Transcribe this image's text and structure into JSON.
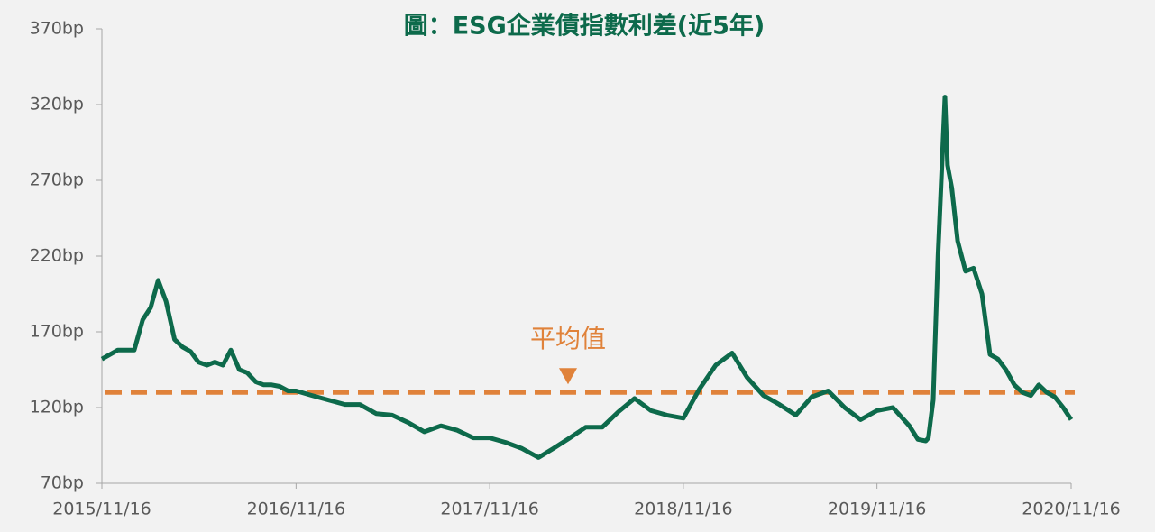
{
  "chart_data": {
    "type": "line",
    "title": "圖：ESG企業債指數利差(近5年)",
    "x": [
      "2015/11/16",
      "2015/12/16",
      "2016/01/16",
      "2016/02/01",
      "2016/02/16",
      "2016/03/01",
      "2016/03/16",
      "2016/04/01",
      "2016/04/16",
      "2016/05/01",
      "2016/05/16",
      "2016/06/01",
      "2016/06/16",
      "2016/07/01",
      "2016/07/16",
      "2016/08/01",
      "2016/08/16",
      "2016/09/01",
      "2016/09/16",
      "2016/10/01",
      "2016/10/16",
      "2016/11/01",
      "2016/11/16",
      "2016/12/16",
      "2017/01/16",
      "2017/02/16",
      "2017/03/16",
      "2017/04/16",
      "2017/05/16",
      "2017/06/16",
      "2017/07/16",
      "2017/08/16",
      "2017/09/16",
      "2017/10/16",
      "2017/11/16",
      "2017/12/16",
      "2018/01/16",
      "2018/02/16",
      "2018/03/16",
      "2018/04/16",
      "2018/05/16",
      "2018/06/16",
      "2018/07/16",
      "2018/08/16",
      "2018/09/16",
      "2018/10/16",
      "2018/11/16",
      "2018/12/16",
      "2019/01/16",
      "2019/02/16",
      "2019/03/16",
      "2019/04/16",
      "2019/05/16",
      "2019/06/16",
      "2019/07/16",
      "2019/08/16",
      "2019/09/16",
      "2019/10/16",
      "2019/11/16",
      "2019/12/16",
      "2020/01/16",
      "2020/02/01",
      "2020/02/16",
      "2020/02/21",
      "2020/03/01",
      "2020/03/10",
      "2020/03/23",
      "2020/03/28",
      "2020/04/05",
      "2020/04/16",
      "2020/05/01",
      "2020/05/16",
      "2020/06/01",
      "2020/06/16",
      "2020/07/01",
      "2020/07/16",
      "2020/08/01",
      "2020/08/16",
      "2020/09/01",
      "2020/09/16",
      "2020/10/01",
      "2020/10/16",
      "2020/11/01",
      "2020/11/16"
    ],
    "series": [
      {
        "color": "#0d6a4b",
        "values": [
          152,
          158,
          158,
          178,
          186,
          204,
          190,
          165,
          160,
          157,
          150,
          148,
          150,
          148,
          158,
          145,
          143,
          137,
          135,
          135,
          134,
          131,
          131,
          128,
          125,
          122,
          122,
          116,
          115,
          110,
          104,
          108,
          105,
          100,
          100,
          97,
          93,
          87,
          93,
          100,
          107,
          107,
          117,
          126,
          118,
          115,
          113,
          132,
          148,
          156,
          140,
          128,
          122,
          115,
          127,
          131,
          120,
          112,
          118,
          120,
          108,
          99,
          98,
          100,
          125,
          220,
          325,
          280,
          265,
          230,
          210,
          212,
          195,
          155,
          152,
          145,
          135,
          130,
          128,
          135,
          130,
          127,
          120,
          112
        ]
      }
    ],
    "xlim": [
      "2015/11/16",
      "2020/11/16"
    ],
    "xticks": [
      "2015/11/16",
      "2016/11/16",
      "2017/11/16",
      "2018/11/16",
      "2019/11/16",
      "2020/11/16"
    ],
    "ylim": [
      70,
      370
    ],
    "yticks": [
      {
        "value": 70,
        "label": "70bp"
      },
      {
        "value": 120,
        "label": "120bp"
      },
      {
        "value": 170,
        "label": "170bp"
      },
      {
        "value": 220,
        "label": "220bp"
      },
      {
        "value": 270,
        "label": "270bp"
      },
      {
        "value": 320,
        "label": "320bp"
      },
      {
        "value": 370,
        "label": "370bp"
      }
    ],
    "reference_line": {
      "value": 130,
      "label": "平均值",
      "color": "#e0823a"
    }
  }
}
